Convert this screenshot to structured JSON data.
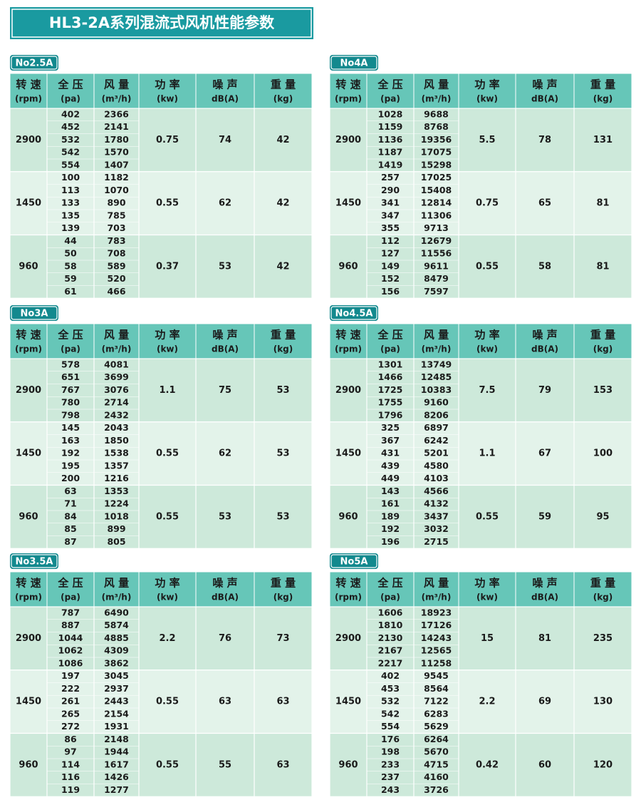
{
  "title": "HL3-2A系列混流式风机性能参数",
  "header": [
    {
      "line1": "转 速",
      "line2": "(rpm)"
    },
    {
      "line1": "全 压",
      "line2": "(pa)"
    },
    {
      "line1": "风 量",
      "line2": "(m³/h)"
    },
    {
      "line1": "功 率",
      "line2": "(kw)"
    },
    {
      "line1": "噪 声",
      "line2": "dB(A)"
    },
    {
      "line1": "重 量",
      "line2": "(kg)"
    }
  ],
  "tables": [
    {
      "label": "No2.5A",
      "groups": [
        {
          "speed": "2900",
          "pressure": [
            "402",
            "452",
            "532",
            "542",
            "554"
          ],
          "flow": [
            "2366",
            "2141",
            "1780",
            "1570",
            "1407"
          ],
          "power": "0.75",
          "noise": "74",
          "weight": "42"
        },
        {
          "speed": "1450",
          "pressure": [
            "100",
            "113",
            "133",
            "135",
            "139"
          ],
          "flow": [
            "1182",
            "1070",
            "890",
            "785",
            "703"
          ],
          "power": "0.55",
          "noise": "62",
          "weight": "42"
        },
        {
          "speed": "960",
          "pressure": [
            "44",
            "50",
            "58",
            "59",
            "61"
          ],
          "flow": [
            "783",
            "708",
            "589",
            "520",
            "466"
          ],
          "power": "0.37",
          "noise": "53",
          "weight": "42"
        }
      ]
    },
    {
      "label": "No4A",
      "groups": [
        {
          "speed": "2900",
          "pressure": [
            "1028",
            "1159",
            "1136",
            "1187",
            "1419"
          ],
          "flow": [
            "9688",
            "8768",
            "19356",
            "17075",
            "15298"
          ],
          "power": "5.5",
          "noise": "78",
          "weight": "131"
        },
        {
          "speed": "1450",
          "pressure": [
            "257",
            "290",
            "341",
            "347",
            "355"
          ],
          "flow": [
            "17025",
            "15408",
            "12814",
            "11306",
            "9713"
          ],
          "power": "0.75",
          "noise": "65",
          "weight": "81"
        },
        {
          "speed": "960",
          "pressure": [
            "112",
            "127",
            "149",
            "152",
            "156"
          ],
          "flow": [
            "12679",
            "11556",
            "9611",
            "8479",
            "7597"
          ],
          "power": "0.55",
          "noise": "58",
          "weight": "81"
        }
      ]
    },
    {
      "label": "No3A",
      "groups": [
        {
          "speed": "2900",
          "pressure": [
            "578",
            "651",
            "767",
            "780",
            "798"
          ],
          "flow": [
            "4081",
            "3699",
            "3076",
            "2714",
            "2432"
          ],
          "power": "1.1",
          "noise": "75",
          "weight": "53"
        },
        {
          "speed": "1450",
          "pressure": [
            "145",
            "163",
            "192",
            "195",
            "200"
          ],
          "flow": [
            "2043",
            "1850",
            "1538",
            "1357",
            "1216"
          ],
          "power": "0.55",
          "noise": "62",
          "weight": "53"
        },
        {
          "speed": "960",
          "pressure": [
            "63",
            "71",
            "84",
            "85",
            "87"
          ],
          "flow": [
            "1353",
            "1224",
            "1018",
            "899",
            "805"
          ],
          "power": "0.55",
          "noise": "53",
          "weight": "53"
        }
      ]
    },
    {
      "label": "No4.5A",
      "groups": [
        {
          "speed": "2900",
          "pressure": [
            "1301",
            "1466",
            "1725",
            "1755",
            "1796"
          ],
          "flow": [
            "13749",
            "12485",
            "10383",
            "9160",
            "8206"
          ],
          "power": "7.5",
          "noise": "79",
          "weight": "153"
        },
        {
          "speed": "1450",
          "pressure": [
            "325",
            "367",
            "431",
            "439",
            "449"
          ],
          "flow": [
            "6897",
            "6242",
            "5201",
            "4580",
            "4103"
          ],
          "power": "1.1",
          "noise": "67",
          "weight": "100"
        },
        {
          "speed": "960",
          "pressure": [
            "143",
            "161",
            "189",
            "192",
            "196"
          ],
          "flow": [
            "4566",
            "4132",
            "3437",
            "3032",
            "2715"
          ],
          "power": "0.55",
          "noise": "59",
          "weight": "95"
        }
      ]
    },
    {
      "label": "No3.5A",
      "groups": [
        {
          "speed": "2900",
          "pressure": [
            "787",
            "887",
            "1044",
            "1062",
            "1086"
          ],
          "flow": [
            "6490",
            "5874",
            "4885",
            "4309",
            "3862"
          ],
          "power": "2.2",
          "noise": "76",
          "weight": "73"
        },
        {
          "speed": "1450",
          "pressure": [
            "197",
            "222",
            "261",
            "265",
            "272"
          ],
          "flow": [
            "3045",
            "2937",
            "2443",
            "2154",
            "1931"
          ],
          "power": "0.55",
          "noise": "63",
          "weight": "63"
        },
        {
          "speed": "960",
          "pressure": [
            "86",
            "97",
            "114",
            "116",
            "119"
          ],
          "flow": [
            "2148",
            "1944",
            "1617",
            "1426",
            "1277"
          ],
          "power": "0.55",
          "noise": "55",
          "weight": "63"
        }
      ]
    },
    {
      "label": "No5A",
      "groups": [
        {
          "speed": "2900",
          "pressure": [
            "1606",
            "1810",
            "2130",
            "2167",
            "2217"
          ],
          "flow": [
            "18923",
            "17126",
            "14243",
            "12565",
            "11258"
          ],
          "power": "15",
          "noise": "81",
          "weight": "235"
        },
        {
          "speed": "1450",
          "pressure": [
            "402",
            "453",
            "532",
            "542",
            "554"
          ],
          "flow": [
            "9545",
            "8564",
            "7122",
            "6283",
            "5629"
          ],
          "power": "2.2",
          "noise": "69",
          "weight": "130"
        },
        {
          "speed": "960",
          "pressure": [
            "176",
            "198",
            "233",
            "237",
            "243"
          ],
          "flow": [
            "6264",
            "5670",
            "4715",
            "4160",
            "3726"
          ],
          "power": "0.42",
          "noise": "60",
          "weight": "120"
        }
      ]
    }
  ]
}
